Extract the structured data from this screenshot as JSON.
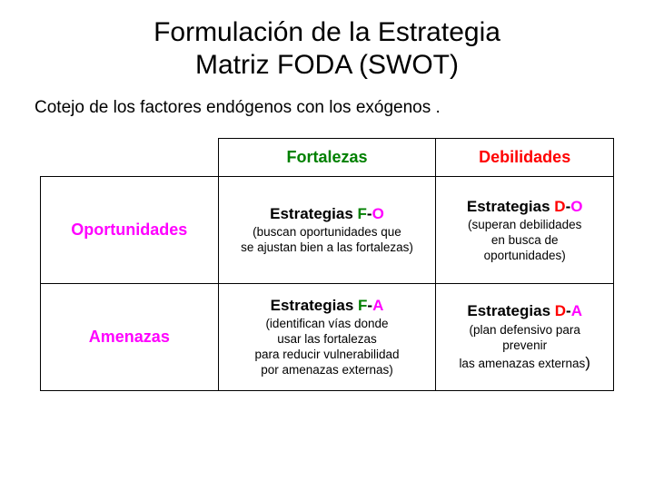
{
  "title_line1": "Formulación de la Estrategia",
  "title_line2": "Matriz FODA (SWOT)",
  "subtitle": "Cotejo de los factores endógenos con los exógenos .",
  "colors": {
    "magenta": "#ff00ff",
    "green": "#008000",
    "red": "#ff0000",
    "border": "#000000",
    "background": "#ffffff",
    "text": "#000000"
  },
  "fonts": {
    "title_size": 30,
    "subtitle_size": 19,
    "header_size": 18,
    "strategy_size": 17,
    "desc_size": 13.5
  },
  "headers": {
    "col1": {
      "text": "Fortalezas",
      "color": "#008000"
    },
    "col2": {
      "text": "Debilidades",
      "color": "#ff0000"
    },
    "row1": {
      "text": "Oportunidades",
      "color": "#ff00ff"
    },
    "row2": {
      "text": "Amenazas",
      "color": "#ff00ff"
    }
  },
  "cells": {
    "fo": {
      "prefix": "Estrategias ",
      "letter1": "F",
      "letter1_color": "#008000",
      "dash": "-",
      "letter2": "O",
      "letter2_color": "#ff00ff",
      "desc_l1": "(buscan oportunidades que",
      "desc_l2": "se ajustan bien a las fortalezas)"
    },
    "do": {
      "prefix": "Estrategias ",
      "letter1": "D",
      "letter1_color": "#ff0000",
      "dash": "-",
      "letter2": "O",
      "letter2_color": "#ff00ff",
      "desc_l1": "(superan debilidades",
      "desc_l2": "en busca de",
      "desc_l3": "oportunidades)"
    },
    "fa": {
      "prefix": "Estrategias ",
      "letter1": "F",
      "letter1_color": "#008000",
      "dash": "-",
      "letter2": "A",
      "letter2_color": "#ff00ff",
      "desc_l1": "(identifican vías donde",
      "desc_l2": "usar las fortalezas",
      "desc_l3": "para reducir vulnerabilidad",
      "desc_l4": "por amenazas externas)"
    },
    "da": {
      "prefix": "Estrategias ",
      "letter1": "D",
      "letter1_color": "#ff0000",
      "dash": "-",
      "letter2": "A",
      "letter2_color": "#ff00ff",
      "desc_l1": "(plan defensivo para",
      "desc_l2": "prevenir",
      "desc_l3_prefix": "las amenazas externas",
      "desc_l3_paren": ")"
    }
  }
}
